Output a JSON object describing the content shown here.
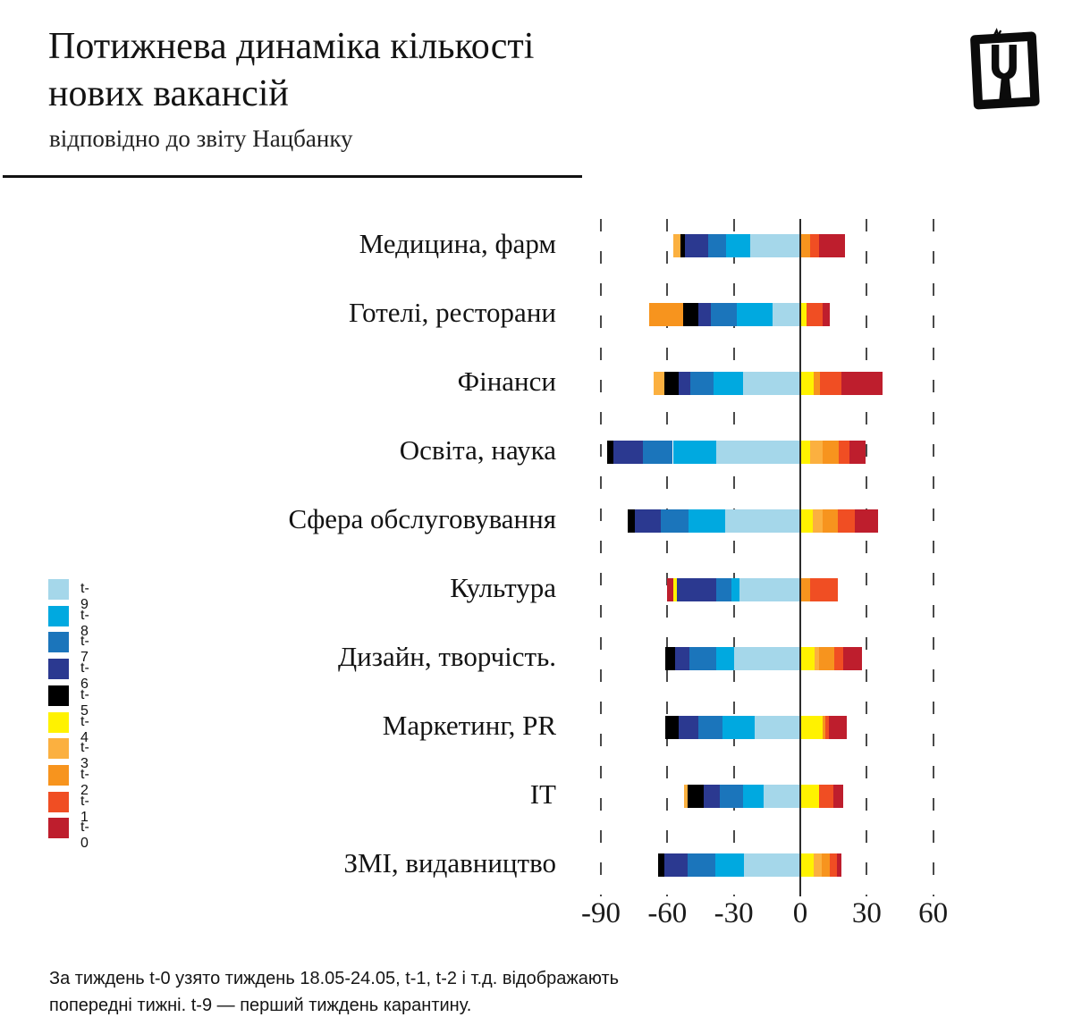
{
  "header": {
    "title_line1": "Потижнева динаміка кількості",
    "title_line2": "нових вакансій",
    "subtitle": "відповідно до звіту Нацбанку",
    "logo_icon": "framed-ch-letter-logo"
  },
  "footer": {
    "line1": "За тиждень t-0 узято тиждень 18.05-24.05, t-1, t-2 і т.д. відображають",
    "line2": "попередні тижні. t-9 — перший тиждень карантину."
  },
  "legend": {
    "items": [
      {
        "label": "t-9",
        "color": "#A5D7EA"
      },
      {
        "label": "t-8",
        "color": "#00A9E0"
      },
      {
        "label": "t-7",
        "color": "#1B75BB"
      },
      {
        "label": "t-6",
        "color": "#2B3990"
      },
      {
        "label": "t-5",
        "color": "#000000"
      },
      {
        "label": "t-4",
        "color": "#FFF200"
      },
      {
        "label": "t-3",
        "color": "#FBB040"
      },
      {
        "label": "t-2",
        "color": "#F7941E"
      },
      {
        "label": "t-1",
        "color": "#F04E23"
      },
      {
        "label": "t-0",
        "color": "#BE1E2D"
      }
    ]
  },
  "chart_data": {
    "type": "bar",
    "orientation": "horizontal",
    "stacking": "diverging",
    "title": "Потижнева динаміка кількості нових вакансій",
    "subtitle": "відповідно до звіту Нацбанку",
    "xlabel": "",
    "ylabel": "",
    "xlim": [
      -100,
      75
    ],
    "grid": "vertical-dashed",
    "x_ticks": [
      -90,
      -60,
      -30,
      0,
      30,
      60
    ],
    "x_tick_labels": [
      "-90",
      "-60",
      "-30",
      "0",
      "30",
      "60"
    ],
    "series_order": [
      "t-9",
      "t-8",
      "t-7",
      "t-6",
      "t-5",
      "t-4",
      "t-3",
      "t-2",
      "t-1",
      "t-0"
    ],
    "series_colors": {
      "t-9": "#A5D7EA",
      "t-8": "#00A9E0",
      "t-7": "#1B75BB",
      "t-6": "#2B3990",
      "t-5": "#000000",
      "t-4": "#FFF200",
      "t-3": "#FBB040",
      "t-2": "#F7941E",
      "t-1": "#F04E23",
      "t-0": "#BE1E2D"
    },
    "rows": [
      {
        "category": "Медицина, фарм",
        "segments": [
          {
            "series": "t-3",
            "value": -3.5
          },
          {
            "series": "t-5",
            "value": -2
          },
          {
            "series": "t-6",
            "value": -10.5
          },
          {
            "series": "t-7",
            "value": -8
          },
          {
            "series": "t-8",
            "value": -11
          },
          {
            "series": "t-9",
            "value": -22.5
          },
          {
            "series": "t-2",
            "value": 4.5
          },
          {
            "series": "t-1",
            "value": 4
          },
          {
            "series": "t-0",
            "value": 11.5
          }
        ]
      },
      {
        "category": "Готелі, ресторани",
        "segments": [
          {
            "series": "t-2",
            "value": -15
          },
          {
            "series": "t-5",
            "value": -7
          },
          {
            "series": "t-6",
            "value": -5.5
          },
          {
            "series": "t-7",
            "value": -12
          },
          {
            "series": "t-8",
            "value": -16
          },
          {
            "series": "t-9",
            "value": -12.5
          },
          {
            "series": "t-4",
            "value": 3
          },
          {
            "series": "t-1",
            "value": 7
          },
          {
            "series": "t-0",
            "value": 3.5
          }
        ]
      },
      {
        "category": "Фінанси",
        "segments": [
          {
            "series": "t-3",
            "value": -4.5
          },
          {
            "series": "t-5",
            "value": -6.5
          },
          {
            "series": "t-6",
            "value": -5.5
          },
          {
            "series": "t-7",
            "value": -10.5
          },
          {
            "series": "t-8",
            "value": -13
          },
          {
            "series": "t-9",
            "value": -26
          },
          {
            "series": "t-4",
            "value": 6
          },
          {
            "series": "t-2",
            "value": 3
          },
          {
            "series": "t-1",
            "value": 9.5
          },
          {
            "series": "t-0",
            "value": 18.5
          }
        ]
      },
      {
        "category": "Освіта, наука",
        "segments": [
          {
            "series": "t-5",
            "value": -2.5
          },
          {
            "series": "t-6",
            "value": -13.5
          },
          {
            "series": "t-7",
            "value": -13.5
          },
          {
            "series": "t-8",
            "value": -19.5
          },
          {
            "series": "t-9",
            "value": -38
          },
          {
            "series": "t-4",
            "value": 4.5
          },
          {
            "series": "t-3",
            "value": 5.5
          },
          {
            "series": "t-2",
            "value": 7.5
          },
          {
            "series": "t-1",
            "value": 4.5
          },
          {
            "series": "t-0",
            "value": 7.5
          }
        ]
      },
      {
        "category": "Сфера обслуговування",
        "segments": [
          {
            "series": "t-5",
            "value": -3.5
          },
          {
            "series": "t-6",
            "value": -11.5
          },
          {
            "series": "t-7",
            "value": -12.5
          },
          {
            "series": "t-8",
            "value": -16.5
          },
          {
            "series": "t-9",
            "value": -34
          },
          {
            "series": "t-4",
            "value": 5.5
          },
          {
            "series": "t-3",
            "value": 4.5
          },
          {
            "series": "t-2",
            "value": 7
          },
          {
            "series": "t-1",
            "value": 7.5
          },
          {
            "series": "t-0",
            "value": 10.5
          }
        ]
      },
      {
        "category": "Культура",
        "segments": [
          {
            "series": "t-0",
            "value": -2.5
          },
          {
            "series": "t-4",
            "value": -2
          },
          {
            "series": "t-6",
            "value": -17.5
          },
          {
            "series": "t-7",
            "value": -7
          },
          {
            "series": "t-8",
            "value": -3.5
          },
          {
            "series": "t-9",
            "value": -27.5
          },
          {
            "series": "t-2",
            "value": 4.5
          },
          {
            "series": "t-1",
            "value": 12.5
          }
        ]
      },
      {
        "category": "Дизайн, творчість.",
        "segments": [
          {
            "series": "t-5",
            "value": -4.5
          },
          {
            "series": "t-6",
            "value": -6.5
          },
          {
            "series": "t-7",
            "value": -12
          },
          {
            "series": "t-8",
            "value": -8
          },
          {
            "series": "t-9",
            "value": -30
          },
          {
            "series": "t-4",
            "value": 6.5
          },
          {
            "series": "t-3",
            "value": 2
          },
          {
            "series": "t-2",
            "value": 7
          },
          {
            "series": "t-1",
            "value": 4
          },
          {
            "series": "t-0",
            "value": 8.5
          }
        ]
      },
      {
        "category": "Маркетинг, PR",
        "segments": [
          {
            "series": "t-5",
            "value": -6
          },
          {
            "series": "t-6",
            "value": -9
          },
          {
            "series": "t-7",
            "value": -11
          },
          {
            "series": "t-8",
            "value": -14.5
          },
          {
            "series": "t-9",
            "value": -20.5
          },
          {
            "series": "t-4",
            "value": 10
          },
          {
            "series": "t-2",
            "value": 1.5
          },
          {
            "series": "t-1",
            "value": 1.5
          },
          {
            "series": "t-0",
            "value": 8
          }
        ]
      },
      {
        "category": "IT",
        "segments": [
          {
            "series": "t-3",
            "value": -1.5
          },
          {
            "series": "t-5",
            "value": -7.5
          },
          {
            "series": "t-6",
            "value": -7
          },
          {
            "series": "t-7",
            "value": -10.5
          },
          {
            "series": "t-8",
            "value": -9.5
          },
          {
            "series": "t-9",
            "value": -16.5
          },
          {
            "series": "t-4",
            "value": 8.5
          },
          {
            "series": "t-1",
            "value": 6.5
          },
          {
            "series": "t-0",
            "value": 4.5
          }
        ]
      },
      {
        "category": "ЗМІ, видавництво",
        "segments": [
          {
            "series": "t-5",
            "value": -2.5
          },
          {
            "series": "t-6",
            "value": -10.5
          },
          {
            "series": "t-7",
            "value": -12.5
          },
          {
            "series": "t-8",
            "value": -13
          },
          {
            "series": "t-9",
            "value": -25.5
          },
          {
            "series": "t-4",
            "value": 6
          },
          {
            "series": "t-3",
            "value": 3.5
          },
          {
            "series": "t-2",
            "value": 4
          },
          {
            "series": "t-1",
            "value": 3
          },
          {
            "series": "t-0",
            "value": 2
          }
        ]
      }
    ]
  }
}
